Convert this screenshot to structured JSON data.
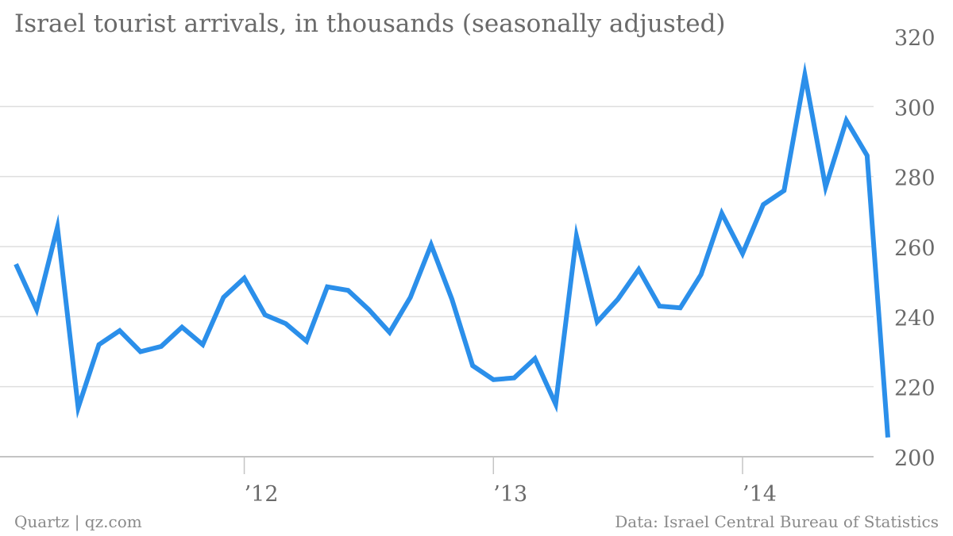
{
  "chart_data": {
    "type": "line",
    "title": "Israel tourist arrivals, in thousands (seasonally adjusted)",
    "xlabel": "",
    "ylabel": "",
    "ylim": [
      200,
      320
    ],
    "y_ticks": [
      200,
      220,
      240,
      260,
      280,
      300,
      320
    ],
    "x_ticks": [
      {
        "label": "’12",
        "x": "2012-01"
      },
      {
        "label": "’13",
        "x": "2013-01"
      },
      {
        "label": "’14",
        "x": "2014-01"
      }
    ],
    "grid": "horizontal",
    "x": [
      "2011-02",
      "2011-03",
      "2011-04",
      "2011-05",
      "2011-06",
      "2011-07",
      "2011-08",
      "2011-09",
      "2011-10",
      "2011-11",
      "2011-12",
      "2012-01",
      "2012-02",
      "2012-03",
      "2012-04",
      "2012-05",
      "2012-06",
      "2012-07",
      "2012-08",
      "2012-09",
      "2012-10",
      "2012-11",
      "2012-12",
      "2013-01",
      "2013-02",
      "2013-03",
      "2013-04",
      "2013-05",
      "2013-06",
      "2013-07",
      "2013-08",
      "2013-09",
      "2013-10",
      "2013-11",
      "2013-12",
      "2014-01",
      "2014-02",
      "2014-03",
      "2014-04",
      "2014-05",
      "2014-06",
      "2014-07",
      "2014-08"
    ],
    "series": [
      {
        "color": "#2b8fea",
        "values": [
          255,
          242,
          265.5,
          214,
          232,
          236,
          230,
          231.5,
          237,
          232,
          245.5,
          251,
          240.5,
          238,
          233,
          248.5,
          247.5,
          242,
          235.5,
          245.5,
          260.5,
          245,
          226,
          222,
          222.5,
          228,
          215,
          263,
          238.5,
          245,
          253.5,
          243,
          242.5,
          252,
          269.5,
          258,
          272,
          276,
          309,
          277,
          296,
          286,
          205.5
        ]
      }
    ]
  },
  "footer": {
    "source_left": "Quartz | qz.com",
    "source_right": "Data: Israel Central Bureau of Statistics"
  }
}
